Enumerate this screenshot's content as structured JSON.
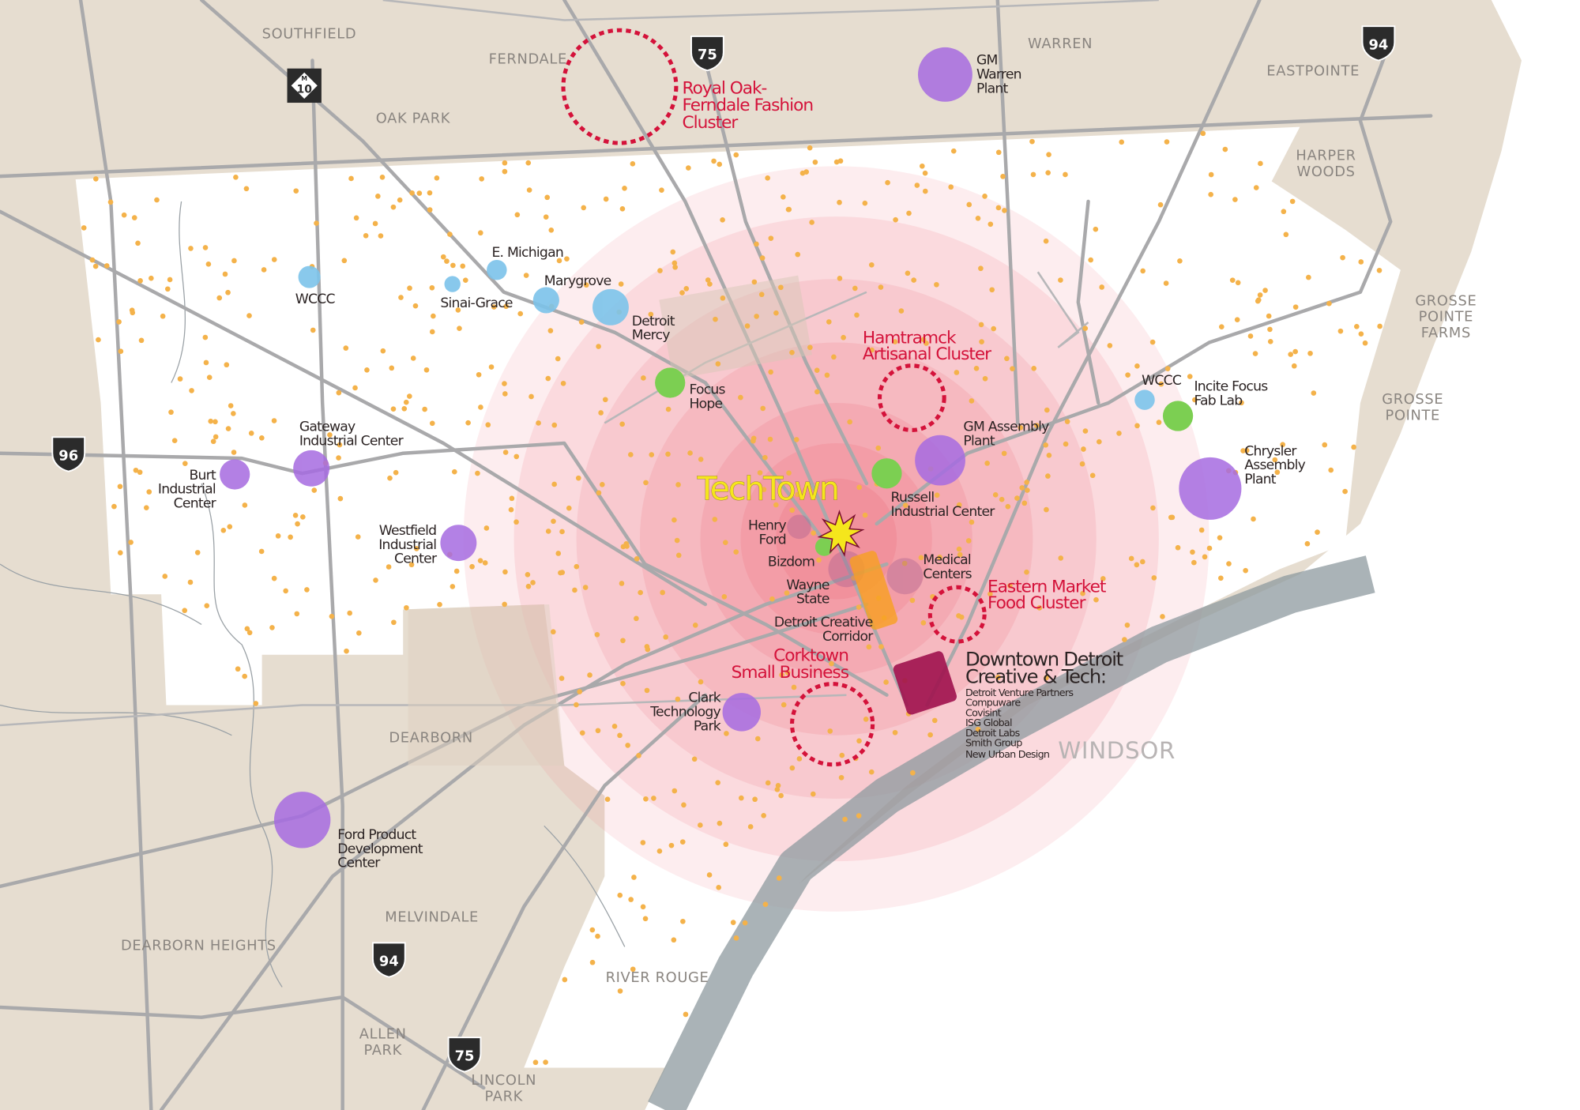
{
  "colors": {
    "land": "#e6ddd0",
    "city": "#ffffff",
    "water": "#8e999f",
    "rings": "#ee6a78",
    "cluster": "#d4123a",
    "purple": "#a66be0",
    "blue": "#7cc3ea",
    "green": "#7ccf52",
    "dots": "#f4b24a",
    "techtown": "#f5e61c",
    "downtown": "#a0124e",
    "corridor": "#f7a020"
  },
  "places": {
    "southfield": "SOUTHFIELD",
    "ferndale": "FERNDALE",
    "oak_park": "OAK PARK",
    "warren": "WARREN",
    "eastpointe": "EASTPOINTE",
    "harper_woods": [
      "HARPER",
      "WOODS"
    ],
    "gp_farms": [
      "GROSSE",
      "POINTE",
      "FARMS"
    ],
    "grosse_pointe": [
      "GROSSE",
      "POINTE"
    ],
    "dearborn": "DEARBORN",
    "melvindale": "MELVINDALE",
    "dearborn_heights": "DEARBORN HEIGHTS",
    "river_rouge": "RIVER ROUGE",
    "allen_park": [
      "ALLEN",
      "PARK"
    ],
    "lincoln_park": [
      "LINCOLN",
      "PARK"
    ],
    "windsor": "WINDSOR"
  },
  "highways": {
    "i75_north": "75",
    "i94_east": "94",
    "i96": "96",
    "m10": "10",
    "m10_letter": "M",
    "i94_south": "94",
    "i75_south": "75"
  },
  "clusters": {
    "royal_oak": [
      "Royal Oak-",
      "Ferndale Fashion",
      "Cluster"
    ],
    "hamtramck": [
      "Hamtramck",
      "Artisanal Cluster"
    ],
    "eastern_market": [
      "Eastern Market",
      "Food Cluster"
    ],
    "corktown": [
      "Corktown",
      "Small Business"
    ]
  },
  "industrial": {
    "gm_warren": [
      "GM",
      "Warren",
      "Plant"
    ],
    "gm_assembly": [
      "GM Assembly",
      "Plant"
    ],
    "chrysler": [
      "Chrysler",
      "Assembly",
      "Plant"
    ],
    "burt": [
      "Burt",
      "Industrial",
      "Center"
    ],
    "gateway": [
      "Gateway",
      "Industrial Center"
    ],
    "westfield": [
      "Westfield",
      "Industrial",
      "Center"
    ],
    "clark": [
      "Clark",
      "Technology",
      "Park"
    ],
    "ford": [
      "Ford Product",
      "Development",
      "Center"
    ]
  },
  "education": {
    "wccc_west": "WCCC",
    "sinai_grace": "Sinai-Grace",
    "e_michigan": "E. Michigan",
    "marygrove": "Marygrove",
    "detroit_mercy": [
      "Detroit",
      "Mercy"
    ],
    "wccc_east": "WCCC"
  },
  "incubators": {
    "focus_hope": [
      "Focus",
      "Hope"
    ],
    "incite": [
      "Incite Focus",
      "Fab Lab"
    ],
    "russell": [
      "Russell",
      "Industrial Center"
    ],
    "bizdom": "Bizdom"
  },
  "anchors": {
    "henry_ford": [
      "Henry",
      "Ford"
    ],
    "wayne_state": [
      "Wayne",
      "State"
    ],
    "creative_corridor": [
      "Detroit Creative",
      "Corridor"
    ],
    "medical": [
      "Medical",
      "Centers"
    ]
  },
  "techtown": "TechTown",
  "downtown": {
    "title": [
      "Downtown Detroit",
      "Creative & Tech:"
    ],
    "companies": [
      "Detroit Venture Partners",
      "Compuware",
      "Covisint",
      "ISG Global",
      "Detroit Labs",
      "Smith Group",
      "New Urban Design"
    ]
  }
}
